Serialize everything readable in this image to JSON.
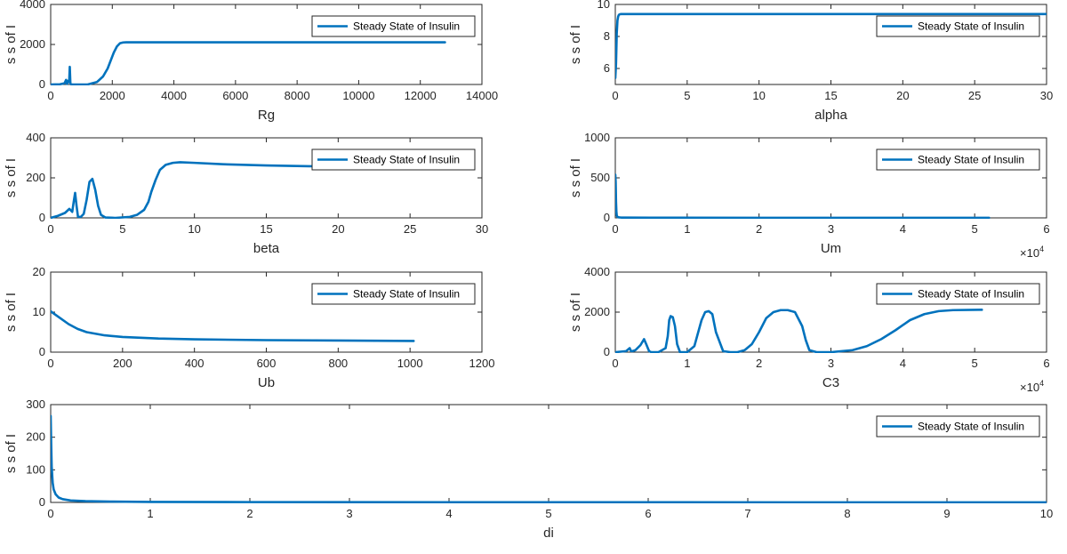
{
  "style": {
    "line_color": "#0072bd",
    "axis_color": "#262626",
    "background": "#ffffff"
  },
  "chart_data": [
    {
      "id": "rg",
      "type": "line",
      "xlabel": "Rg",
      "ylabel": "s s of I",
      "xlim": [
        0,
        14000
      ],
      "ylim": [
        0,
        4000
      ],
      "xticks": [
        0,
        2000,
        4000,
        6000,
        8000,
        10000,
        12000,
        14000
      ],
      "yticks": [
        0,
        2000,
        4000
      ],
      "legend": "Steady State of Insulin",
      "legend_position": "top-right",
      "series": [
        {
          "name": "Steady State of Insulin",
          "x": [
            0,
            300,
            450,
            500,
            530,
            560,
            600,
            620,
            640,
            660,
            700,
            900,
            1200,
            1500,
            1700,
            1850,
            1950,
            2050,
            2150,
            2250,
            2350,
            2450,
            2700,
            4000,
            8000,
            12800
          ],
          "y": [
            0,
            10,
            60,
            230,
            30,
            180,
            120,
            880,
            40,
            10,
            0,
            0,
            0,
            120,
            400,
            800,
            1200,
            1600,
            1900,
            2060,
            2100,
            2110,
            2110,
            2110,
            2110,
            2110
          ]
        }
      ]
    },
    {
      "id": "alpha",
      "type": "line",
      "xlabel": "alpha",
      "ylabel": "s s of I",
      "xlim": [
        0,
        30
      ],
      "ylim": [
        5,
        10
      ],
      "xticks": [
        0,
        5,
        10,
        15,
        20,
        25,
        30
      ],
      "yticks": [
        6,
        8,
        10
      ],
      "legend": "Steady State of Insulin",
      "legend_position": "top-right",
      "series": [
        {
          "name": "Steady State of Insulin",
          "x": [
            0,
            0.05,
            0.1,
            0.15,
            0.2,
            0.25,
            0.3,
            0.4,
            0.6,
            1,
            5,
            10,
            20,
            30
          ],
          "y": [
            5.4,
            6.3,
            8.2,
            9.0,
            9.25,
            9.35,
            9.38,
            9.4,
            9.4,
            9.4,
            9.4,
            9.4,
            9.4,
            9.4
          ]
        }
      ]
    },
    {
      "id": "beta",
      "type": "line",
      "xlabel": "beta",
      "ylabel": "s s of I",
      "xlim": [
        0,
        30
      ],
      "ylim": [
        0,
        400
      ],
      "xticks": [
        0,
        5,
        10,
        15,
        20,
        25,
        30
      ],
      "yticks": [
        0,
        200,
        400
      ],
      "legend": "Steady State of Insulin",
      "legend_position": "top-right",
      "series": [
        {
          "name": "Steady State of Insulin",
          "x": [
            0,
            0.5,
            1.0,
            1.3,
            1.5,
            1.6,
            1.7,
            1.8,
            1.9,
            2.1,
            2.3,
            2.5,
            2.7,
            2.9,
            3.1,
            3.3,
            3.5,
            3.8,
            4.5,
            5.5,
            6.0,
            6.5,
            6.8,
            7.0,
            7.3,
            7.6,
            8.0,
            8.5,
            9.0,
            10,
            12,
            15,
            18,
            20
          ],
          "y": [
            0,
            10,
            25,
            45,
            30,
            80,
            125,
            60,
            5,
            5,
            20,
            90,
            180,
            195,
            140,
            60,
            15,
            2,
            0,
            5,
            15,
            40,
            80,
            130,
            190,
            240,
            265,
            275,
            278,
            275,
            268,
            262,
            258,
            258
          ]
        }
      ]
    },
    {
      "id": "um",
      "type": "line",
      "xlabel": "Um",
      "ylabel": "s s of I",
      "xlim": [
        0,
        60000
      ],
      "ylim": [
        0,
        1000
      ],
      "xticks": [
        0,
        10000,
        20000,
        30000,
        40000,
        50000,
        60000
      ],
      "xticklabels": [
        "0",
        "1",
        "2",
        "3",
        "4",
        "5",
        "6"
      ],
      "xexponent": "4",
      "yticks": [
        0,
        500,
        1000
      ],
      "legend": "Steady State of Insulin",
      "legend_position": "top-right",
      "series": [
        {
          "name": "Steady State of Insulin",
          "x": [
            0,
            50,
            100,
            150,
            200,
            300,
            500,
            800,
            1500,
            5000,
            20000,
            52000
          ],
          "y": [
            540,
            450,
            200,
            80,
            30,
            12,
            6,
            4,
            3,
            2,
            1,
            1
          ]
        }
      ]
    },
    {
      "id": "ub",
      "type": "line",
      "xlabel": "Ub",
      "ylabel": "s s of I",
      "xlim": [
        0,
        1200
      ],
      "ylim": [
        0,
        20
      ],
      "xticks": [
        0,
        200,
        400,
        600,
        800,
        1000,
        1200
      ],
      "yticks": [
        0,
        10,
        20
      ],
      "legend": "Steady State of Insulin",
      "legend_position": "top-right",
      "series": [
        {
          "name": "Steady State of Insulin",
          "x": [
            0,
            25,
            50,
            75,
            100,
            150,
            200,
            300,
            400,
            600,
            800,
            1010
          ],
          "y": [
            10.2,
            8.6,
            7.0,
            5.8,
            5.0,
            4.2,
            3.8,
            3.4,
            3.2,
            3.0,
            2.9,
            2.8
          ]
        }
      ]
    },
    {
      "id": "c3",
      "type": "line",
      "xlabel": "C3",
      "ylabel": "s s of I",
      "xlim": [
        0,
        60000
      ],
      "ylim": [
        0,
        4000
      ],
      "xticks": [
        0,
        10000,
        20000,
        30000,
        40000,
        50000,
        60000
      ],
      "xticklabels": [
        "0",
        "1",
        "2",
        "3",
        "4",
        "5",
        "6"
      ],
      "xexponent": "4",
      "yticks": [
        0,
        2000,
        4000
      ],
      "legend": "Steady State of Insulin",
      "legend_position": "top-right",
      "series": [
        {
          "name": "Steady State of Insulin",
          "x": [
            0,
            1500,
            2000,
            2200,
            2400,
            2800,
            3500,
            4000,
            4300,
            4700,
            5000,
            6000,
            7000,
            7300,
            7500,
            7700,
            8000,
            8300,
            8600,
            9000,
            9500,
            10000,
            11000,
            12000,
            12500,
            13000,
            13500,
            14000,
            15000,
            16000,
            17000,
            18000,
            19000,
            20000,
            21000,
            22000,
            23000,
            24000,
            25000,
            26000,
            26500,
            27000,
            28000,
            30000,
            33000,
            35000,
            37000,
            39000,
            41000,
            43000,
            45000,
            47000,
            51000
          ],
          "y": [
            0,
            50,
            200,
            50,
            50,
            100,
            350,
            650,
            400,
            50,
            0,
            0,
            200,
            800,
            1600,
            1800,
            1750,
            1300,
            400,
            0,
            0,
            0,
            300,
            1600,
            2000,
            2050,
            1900,
            1000,
            50,
            0,
            0,
            100,
            400,
            1000,
            1700,
            2000,
            2100,
            2100,
            2000,
            1300,
            600,
            100,
            0,
            0,
            100,
            300,
            650,
            1100,
            1600,
            1900,
            2050,
            2100,
            2120
          ]
        }
      ]
    },
    {
      "id": "di",
      "type": "line",
      "xlabel": "di",
      "ylabel": "s s of I",
      "xlim": [
        0,
        10
      ],
      "ylim": [
        0,
        300
      ],
      "xticks": [
        0,
        1,
        2,
        3,
        4,
        5,
        6,
        7,
        8,
        9,
        10
      ],
      "yticks": [
        0,
        100,
        200,
        300
      ],
      "legend": "Steady State of Insulin",
      "legend_position": "top-right",
      "series": [
        {
          "name": "Steady State of Insulin",
          "x": [
            0,
            0.005,
            0.01,
            0.02,
            0.03,
            0.05,
            0.08,
            0.12,
            0.2,
            0.35,
            0.6,
            1,
            2,
            5,
            10
          ],
          "y": [
            265,
            180,
            110,
            60,
            40,
            25,
            15,
            10,
            6,
            4,
            2.5,
            1.5,
            1,
            0.5,
            0.2
          ]
        }
      ]
    }
  ]
}
